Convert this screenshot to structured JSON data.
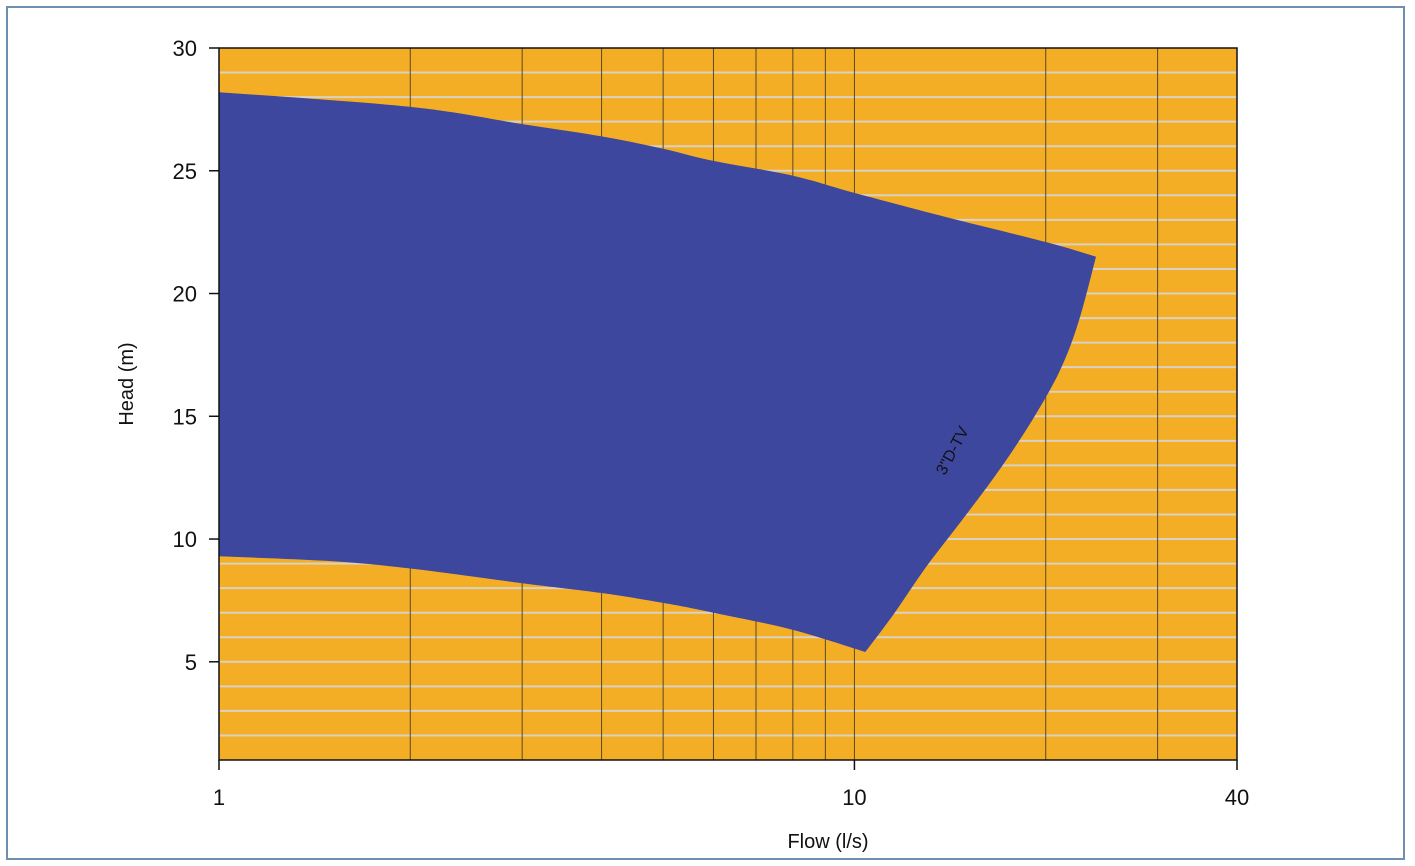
{
  "chart_data": {
    "type": "area",
    "x_scale": "log",
    "y_scale": "linear",
    "xlabel": "Flow (l/s)",
    "ylabel": "Head (m)",
    "xlim": [
      1,
      40
    ],
    "ylim": [
      1,
      30
    ],
    "x_ticks": [
      {
        "value": 1,
        "label": "1"
      },
      {
        "value": 10,
        "label": "10"
      },
      {
        "value": 40,
        "label": "40"
      }
    ],
    "y_ticks": [
      {
        "value": 5,
        "label": "5"
      },
      {
        "value": 10,
        "label": "10"
      },
      {
        "value": 15,
        "label": "15"
      },
      {
        "value": 20,
        "label": "20"
      },
      {
        "value": 25,
        "label": "25"
      },
      {
        "value": 30,
        "label": "30"
      }
    ],
    "x_gridlines": [
      2,
      3,
      4,
      5,
      6,
      7,
      8,
      9,
      20,
      30
    ],
    "y_gridlines": [
      2,
      3,
      4,
      6,
      7,
      8,
      9,
      11,
      12,
      13,
      14,
      16,
      17,
      18,
      19,
      21,
      22,
      23,
      24,
      26,
      27,
      28,
      29
    ],
    "grid": true,
    "colors": {
      "plot_background": "#f4ae26",
      "envelope_fill": "#3d479d",
      "vertical_grid": "#5a4a22",
      "horizontal_grid": "#d8d2c4",
      "frame_border": "#6f8fb0"
    },
    "series": [
      {
        "name": "3\"D-TV",
        "type": "envelope",
        "upper_curve": [
          {
            "x": 1,
            "y": 28.2
          },
          {
            "x": 2,
            "y": 27.6
          },
          {
            "x": 3,
            "y": 26.9
          },
          {
            "x": 4,
            "y": 26.4
          },
          {
            "x": 5,
            "y": 25.9
          },
          {
            "x": 6,
            "y": 25.4
          },
          {
            "x": 8,
            "y": 24.8
          },
          {
            "x": 10,
            "y": 24.1
          },
          {
            "x": 14,
            "y": 23.1
          },
          {
            "x": 20,
            "y": 22.1
          },
          {
            "x": 24,
            "y": 21.5
          }
        ],
        "right_curve": [
          {
            "x": 24,
            "y": 21.5
          },
          {
            "x": 22.5,
            "y": 18.8
          },
          {
            "x": 21,
            "y": 16.8
          },
          {
            "x": 19,
            "y": 14.8
          },
          {
            "x": 17,
            "y": 12.9
          },
          {
            "x": 15,
            "y": 11.0
          },
          {
            "x": 13,
            "y": 8.9
          },
          {
            "x": 11.5,
            "y": 6.9
          },
          {
            "x": 10.4,
            "y": 5.4
          }
        ],
        "lower_curve": [
          {
            "x": 10.4,
            "y": 5.4
          },
          {
            "x": 8,
            "y": 6.3
          },
          {
            "x": 6,
            "y": 7.0
          },
          {
            "x": 5,
            "y": 7.4
          },
          {
            "x": 4,
            "y": 7.8
          },
          {
            "x": 3,
            "y": 8.2
          },
          {
            "x": 2,
            "y": 8.8
          },
          {
            "x": 1.5,
            "y": 9.1
          },
          {
            "x": 1,
            "y": 9.3
          }
        ],
        "label_position": {
          "x": 14.5,
          "y": 13.5
        }
      }
    ]
  }
}
